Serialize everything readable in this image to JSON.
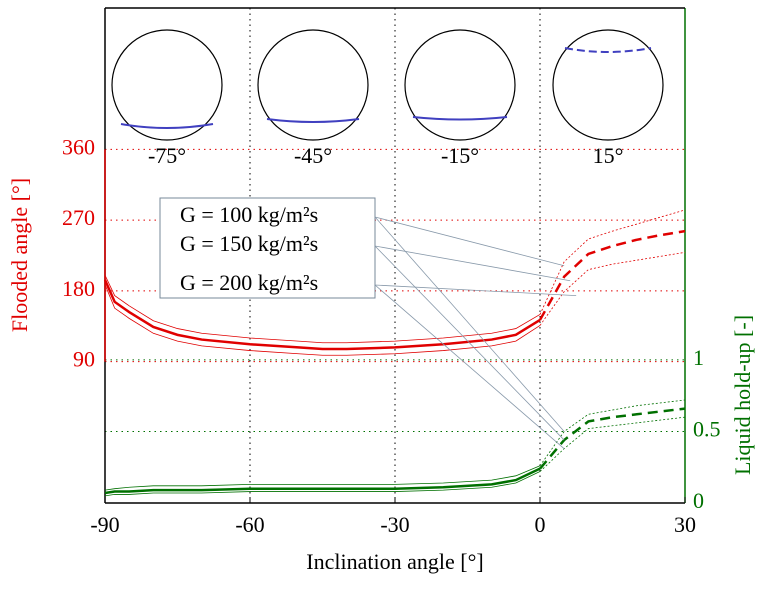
{
  "chart_data": {
    "type": "line",
    "xlabel": "Inclination angle [°]",
    "ylabel": "Flooded angle [°]",
    "y2label": "Liquid hold-up [-]",
    "x": [
      -90,
      -88,
      -85,
      -80,
      -75,
      -70,
      -60,
      -50,
      -45,
      -40,
      -30,
      -20,
      -10,
      -5,
      0,
      5,
      10,
      15,
      20,
      25,
      30
    ],
    "xlim": [
      -90,
      30
    ],
    "xticks": [
      -90,
      -60,
      -30,
      0,
      30
    ],
    "ylim": [
      -90,
      540
    ],
    "yticks": [
      90,
      180,
      270,
      360
    ],
    "y2lim": [
      0,
      3.46
    ],
    "y2ticks": [
      0,
      0.5,
      1
    ],
    "grid": true,
    "annotations": [
      "-75°",
      "-45°",
      "-15°",
      "15°"
    ],
    "series": [
      {
        "name": "G = 100 kg/m²s",
        "color": "#e00000",
        "values": [
          200,
          174,
          161,
          142,
          132,
          126,
          120,
          116,
          114,
          114,
          116,
          120,
          126,
          132,
          150,
          217,
          246,
          256,
          265,
          274,
          283
        ]
      },
      {
        "name": "G = 150 kg/m²s",
        "color": "#e00000",
        "values": [
          194,
          166,
          153,
          134,
          124,
          118,
          112,
          108,
          106,
          106,
          108,
          112,
          118,
          124,
          143,
          198,
          227,
          237,
          245,
          251,
          256
        ]
      },
      {
        "name": "G = 200 kg/m²s",
        "color": "#e00000",
        "values": [
          188,
          158,
          145,
          126,
          116,
          110,
          104,
          100,
          98,
          98,
          100,
          104,
          110,
          116,
          136,
          179,
          207,
          214,
          219,
          224,
          229
        ]
      },
      {
        "axis": "y2",
        "color": "#007000",
        "values": [
          0.09,
          0.1,
          0.11,
          0.12,
          0.12,
          0.12,
          0.13,
          0.13,
          0.13,
          0.13,
          0.13,
          0.14,
          0.16,
          0.19,
          0.26,
          0.5,
          0.62,
          0.65,
          0.68,
          0.7,
          0.72
        ]
      },
      {
        "axis": "y2",
        "color": "#007000",
        "values": [
          0.07,
          0.08,
          0.08,
          0.09,
          0.09,
          0.09,
          0.1,
          0.1,
          0.1,
          0.1,
          0.1,
          0.11,
          0.13,
          0.16,
          0.24,
          0.44,
          0.57,
          0.6,
          0.62,
          0.64,
          0.66
        ]
      },
      {
        "axis": "y2",
        "color": "#007000",
        "values": [
          0.05,
          0.06,
          0.06,
          0.07,
          0.07,
          0.07,
          0.08,
          0.08,
          0.08,
          0.08,
          0.08,
          0.09,
          0.11,
          0.14,
          0.22,
          0.38,
          0.52,
          0.54,
          0.56,
          0.58,
          0.6
        ]
      }
    ]
  }
}
